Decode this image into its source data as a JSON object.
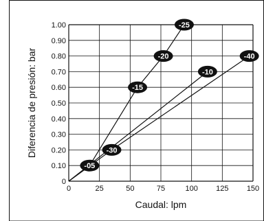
{
  "chart_data": {
    "type": "line",
    "title": "",
    "xlabel": "Caudal: lpm",
    "ylabel": "Diferencia de presión: bar",
    "xlim": [
      0,
      150
    ],
    "ylim": [
      0,
      1.0
    ],
    "x_ticks": [
      0,
      25,
      50,
      75,
      100,
      125,
      150
    ],
    "x_tick_labels": [
      "0",
      "25",
      "50",
      "75",
      "100",
      "125",
      "150"
    ],
    "y_ticks": [
      0,
      0.1,
      0.2,
      0.3,
      0.4,
      0.5,
      0.6,
      0.7,
      0.8,
      0.9,
      1.0
    ],
    "y_tick_labels": [
      "0",
      "0.10",
      "0.20",
      "0.30",
      "0.40",
      "0.50",
      "0.60",
      "0.70",
      "0.80",
      "0.90",
      "1.00"
    ],
    "grid": true,
    "series": [
      {
        "name": "",
        "x": [
          0,
          17,
          56,
          77,
          94
        ],
        "y": [
          0,
          0.1,
          0.6,
          0.8,
          1.0
        ],
        "labels": [
          "",
          "-05",
          "-15",
          "-20",
          "-25"
        ]
      },
      {
        "name": "",
        "x": [
          0,
          113
        ],
        "y": [
          0,
          0.7
        ],
        "labels": [
          "",
          "-10"
        ]
      },
      {
        "name": "",
        "x": [
          0,
          35,
          147
        ],
        "y": [
          0,
          0.2,
          0.8
        ],
        "labels": [
          "",
          "-30",
          "-40"
        ]
      }
    ],
    "marker_color": "#111111",
    "line_color": "#111111",
    "grid_color": "#111111"
  }
}
